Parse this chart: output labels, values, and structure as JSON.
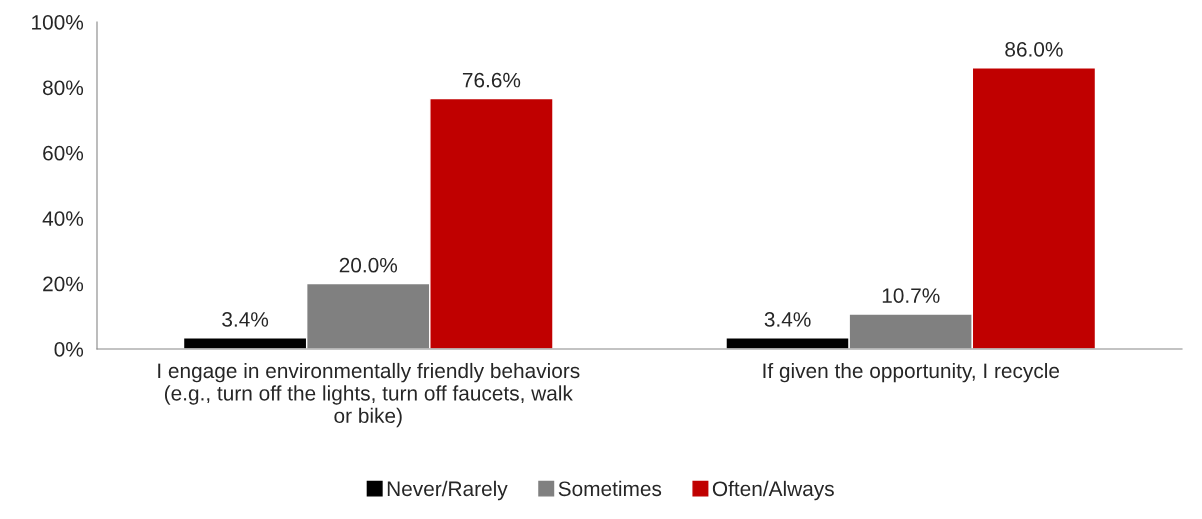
{
  "chart_data": {
    "type": "bar",
    "categories": [
      "I engage in environmentally friendly behaviors\n(e.g., turn off the lights, turn off faucets, walk\nor bike)",
      "If given the opportunity, I recycle"
    ],
    "series": [
      {
        "name": "Never/Rarely",
        "color": "#000000",
        "values": [
          3.4,
          3.4
        ],
        "value_labels": [
          "3.4%",
          "3.4%"
        ]
      },
      {
        "name": "Sometimes",
        "color": "#808080",
        "values": [
          20.0,
          10.7
        ],
        "value_labels": [
          "20.0%",
          "10.7%"
        ]
      },
      {
        "name": "Often/Always",
        "color": "#c00000",
        "values": [
          76.6,
          86.0
        ],
        "value_labels": [
          "76.6%",
          "86.0%"
        ]
      }
    ],
    "ylim": [
      0,
      100
    ],
    "yticks": [
      {
        "value": 0,
        "label": "0%"
      },
      {
        "value": 20,
        "label": "20%"
      },
      {
        "value": 40,
        "label": "40%"
      },
      {
        "value": 60,
        "label": "60%"
      },
      {
        "value": 80,
        "label": "80%"
      },
      {
        "value": 100,
        "label": "100%"
      }
    ],
    "grid": false,
    "legend": "bottom"
  }
}
